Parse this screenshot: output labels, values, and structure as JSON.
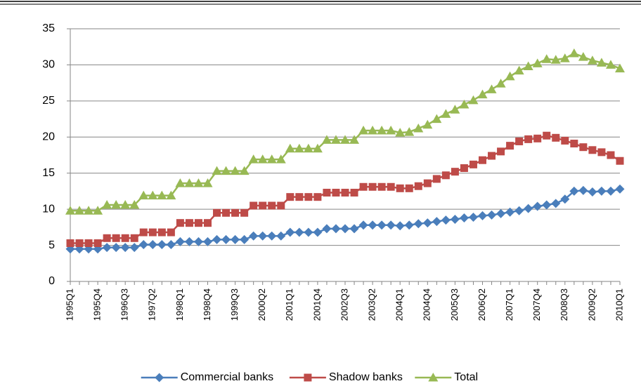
{
  "chart_data": {
    "type": "line",
    "categories": [
      "1995Q1",
      null,
      null,
      "1995Q4",
      null,
      null,
      "1996Q3",
      null,
      null,
      "1997Q2",
      null,
      null,
      "1998Q1",
      null,
      null,
      "1998Q4",
      null,
      null,
      "1999Q3",
      null,
      null,
      "2000Q2",
      null,
      null,
      "2001Q1",
      null,
      null,
      "2001Q4",
      null,
      null,
      "2002Q3",
      null,
      null,
      "2003Q2",
      null,
      null,
      "2004Q1",
      null,
      null,
      "2004Q4",
      null,
      null,
      "2005Q3",
      null,
      null,
      "2006Q2",
      null,
      null,
      "2007Q1",
      null,
      null,
      "2007Q4",
      null,
      null,
      "2008Q3",
      null,
      null,
      "2009Q2",
      null,
      null,
      "2010Q1"
    ],
    "series": [
      {
        "name": "Commercial banks",
        "color": "#4a7ebb",
        "marker": "diamond",
        "values": [
          4.5,
          4.5,
          4.5,
          4.5,
          4.7,
          4.7,
          4.7,
          4.7,
          5.1,
          5.1,
          5.1,
          5.1,
          5.5,
          5.5,
          5.5,
          5.5,
          5.8,
          5.8,
          5.8,
          5.8,
          6.3,
          6.3,
          6.3,
          6.3,
          6.8,
          6.8,
          6.8,
          6.8,
          7.3,
          7.3,
          7.3,
          7.3,
          7.8,
          7.8,
          7.8,
          7.8,
          7.7,
          7.8,
          8.0,
          8.1,
          8.3,
          8.5,
          8.6,
          8.8,
          8.9,
          9.1,
          9.2,
          9.4,
          9.6,
          9.8,
          10.1,
          10.4,
          10.6,
          10.8,
          11.4,
          12.5,
          12.6,
          12.4,
          12.5,
          12.5,
          12.8
        ]
      },
      {
        "name": "Shadow banks",
        "color": "#be4b48",
        "marker": "square",
        "values": [
          5.3,
          5.3,
          5.3,
          5.3,
          6.0,
          6.0,
          6.0,
          6.0,
          6.8,
          6.8,
          6.8,
          6.8,
          8.1,
          8.1,
          8.1,
          8.1,
          9.5,
          9.5,
          9.5,
          9.5,
          10.5,
          10.5,
          10.5,
          10.5,
          11.7,
          11.7,
          11.7,
          11.7,
          12.3,
          12.3,
          12.3,
          12.3,
          13.1,
          13.1,
          13.1,
          13.1,
          12.9,
          12.9,
          13.2,
          13.6,
          14.2,
          14.7,
          15.2,
          15.7,
          16.2,
          16.8,
          17.4,
          18.0,
          18.8,
          19.4,
          19.7,
          19.8,
          20.2,
          19.9,
          19.5,
          19.1,
          18.6,
          18.2,
          17.9,
          17.5,
          16.7
        ]
      },
      {
        "name": "Total",
        "color": "#98b954",
        "marker": "triangle",
        "values": [
          9.8,
          9.8,
          9.8,
          9.8,
          10.6,
          10.6,
          10.6,
          10.6,
          11.9,
          11.9,
          11.9,
          11.9,
          13.6,
          13.6,
          13.6,
          13.6,
          15.3,
          15.3,
          15.3,
          15.3,
          16.9,
          16.9,
          16.9,
          16.9,
          18.4,
          18.4,
          18.4,
          18.4,
          19.6,
          19.6,
          19.6,
          19.6,
          20.9,
          20.9,
          20.9,
          20.9,
          20.6,
          20.7,
          21.2,
          21.7,
          22.5,
          23.2,
          23.8,
          24.5,
          25.1,
          25.9,
          26.6,
          27.4,
          28.4,
          29.2,
          29.8,
          30.2,
          30.8,
          30.7,
          30.9,
          31.6,
          31.1,
          30.6,
          30.3,
          30.0,
          29.5
        ]
      }
    ],
    "ylim": [
      0,
      35
    ],
    "yticks": [
      0,
      5,
      10,
      15,
      20,
      25,
      30,
      35
    ],
    "grid": true,
    "legend": "bottom"
  }
}
